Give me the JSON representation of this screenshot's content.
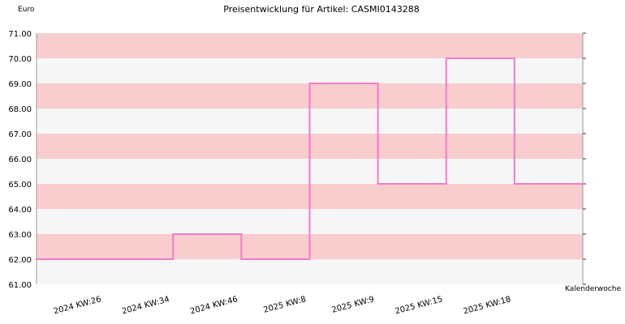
{
  "chart_data": {
    "type": "step",
    "title": "Preisentwicklung für Artikel: CASMI0143288",
    "y_label": "Euro",
    "x_label": "Kalenderwoche",
    "categories": [
      null,
      "2024 KW:26",
      "2024 KW:34",
      "2024 KW:46",
      "2025 KW:8",
      "2025 KW:9",
      "2025 KW:15",
      "2025 KW:18"
    ],
    "values": [
      62,
      62,
      63,
      62,
      69,
      65,
      70,
      65
    ],
    "color": "#f07cc8",
    "band_colors": [
      "#f6f6f6",
      "#f9cdcd"
    ],
    "ylim": [
      61,
      71
    ],
    "yticks": [
      {
        "value": 61,
        "label": "61.00"
      },
      {
        "value": 62,
        "label": "62.00"
      },
      {
        "value": 63,
        "label": "63.00"
      },
      {
        "value": 64,
        "label": "64.00"
      },
      {
        "value": 65,
        "label": "65.00"
      },
      {
        "value": 66,
        "label": "66.00"
      },
      {
        "value": 67,
        "label": "67.00"
      },
      {
        "value": 68,
        "label": "68.00"
      },
      {
        "value": 69,
        "label": "69.00"
      },
      {
        "value": 70,
        "label": "70.00"
      },
      {
        "value": 71,
        "label": "71.00"
      }
    ]
  }
}
